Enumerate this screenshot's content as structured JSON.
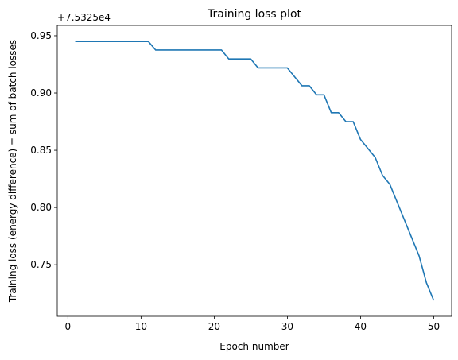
{
  "chart_data": {
    "type": "line",
    "title": "Training loss plot",
    "xlabel": "Epoch number",
    "ylabel": "Training loss (energy difference) = sum of batch losses",
    "offset_label": "+7.5325e4",
    "xlim": [
      -1.45,
      52.45
    ],
    "ylim": [
      0.705,
      0.959
    ],
    "xticks": [
      0,
      10,
      20,
      30,
      40,
      50
    ],
    "xtick_labels": [
      "0",
      "10",
      "20",
      "30",
      "40",
      "50"
    ],
    "yticks": [
      0.75,
      0.8,
      0.85,
      0.9,
      0.95
    ],
    "ytick_labels": [
      "0.75",
      "0.80",
      "0.85",
      "0.90",
      "0.95"
    ],
    "grid": false,
    "series": [
      {
        "color": "#1f77b4",
        "x": [
          1,
          2,
          3,
          4,
          5,
          6,
          7,
          8,
          9,
          10,
          11,
          12,
          13,
          14,
          15,
          16,
          17,
          18,
          19,
          20,
          21,
          22,
          23,
          24,
          25,
          26,
          27,
          28,
          29,
          30,
          31,
          32,
          33,
          34,
          35,
          36,
          37,
          38,
          39,
          40,
          41,
          42,
          43,
          44,
          45,
          46,
          47,
          48,
          49,
          50
        ],
        "y": [
          0.945,
          0.945,
          0.945,
          0.945,
          0.945,
          0.945,
          0.945,
          0.945,
          0.945,
          0.945,
          0.945,
          0.9375,
          0.9375,
          0.9375,
          0.9375,
          0.9375,
          0.9375,
          0.9375,
          0.9375,
          0.9375,
          0.9375,
          0.9297,
          0.9297,
          0.9297,
          0.9297,
          0.9219,
          0.9219,
          0.9219,
          0.9219,
          0.9219,
          0.9141,
          0.9063,
          0.9063,
          0.8984,
          0.8984,
          0.8828,
          0.8828,
          0.875,
          0.875,
          0.8594,
          0.8516,
          0.8438,
          0.8281,
          0.8203,
          0.8047,
          0.7891,
          0.7734,
          0.7578,
          0.7344,
          0.7188
        ]
      }
    ]
  }
}
